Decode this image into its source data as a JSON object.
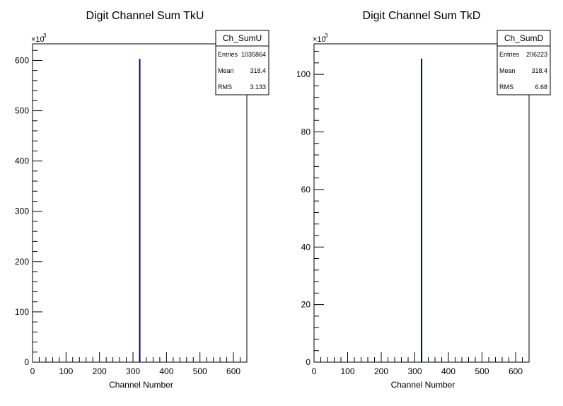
{
  "chart_data": [
    {
      "type": "bar",
      "title": "Digit Channel Sum TkU",
      "xlabel": "Channel Number",
      "ylabel": "",
      "xlim": [
        0,
        640
      ],
      "ylim": [
        0,
        633000
      ],
      "y_multiplier_label": "×10",
      "y_multiplier_exp": "3",
      "x_ticks": [
        "0",
        "100",
        "200",
        "300",
        "400",
        "500",
        "600"
      ],
      "y_ticks": [
        "0",
        "100",
        "200",
        "300",
        "400",
        "500",
        "600"
      ],
      "bin_width": 1,
      "bins": [
        {
          "x": 318,
          "value": 603000
        }
      ],
      "color": "#000080",
      "stats": {
        "name": "Ch_SumU",
        "rows": [
          {
            "label": "Entries",
            "value": "1035864"
          },
          {
            "label": "Mean",
            "value": "318.4"
          },
          {
            "label": "RMS",
            "value": "3.133"
          }
        ]
      }
    },
    {
      "type": "bar",
      "title": "Digit Channel Sum TkD",
      "xlabel": "Channel Number",
      "ylabel": "",
      "xlim": [
        0,
        640
      ],
      "ylim": [
        0,
        110600
      ],
      "y_multiplier_label": "×10",
      "y_multiplier_exp": "3",
      "x_ticks": [
        "0",
        "100",
        "200",
        "300",
        "400",
        "500",
        "600"
      ],
      "y_ticks": [
        "0",
        "20",
        "40",
        "60",
        "80",
        "100"
      ],
      "bin_width": 1,
      "bins": [
        {
          "x": 318,
          "value": 105500
        }
      ],
      "color": "#000080",
      "stats": {
        "name": "Ch_SumD",
        "rows": [
          {
            "label": "Entries",
            "value": "206223"
          },
          {
            "label": "Mean",
            "value": "318.4"
          },
          {
            "label": "RMS",
            "value": "6.68"
          }
        ]
      }
    }
  ]
}
